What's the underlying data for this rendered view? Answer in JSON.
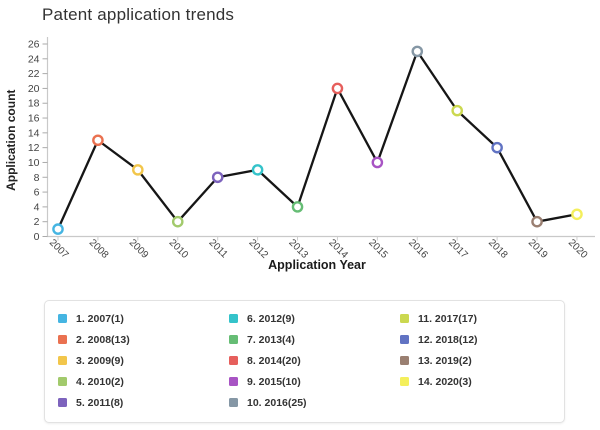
{
  "header": {
    "title": "Patent application trends"
  },
  "chart_data": {
    "type": "line",
    "title": "Patent application trends",
    "xlabel": "Application Year",
    "ylabel": "Application count",
    "categories": [
      "2007",
      "2008",
      "2009",
      "2010",
      "2011",
      "2012",
      "2013",
      "2014",
      "2015",
      "2016",
      "2017",
      "2018",
      "2019",
      "2020"
    ],
    "values": [
      1,
      13,
      9,
      2,
      8,
      9,
      4,
      20,
      10,
      25,
      17,
      12,
      2,
      3
    ],
    "ylim": [
      0,
      26
    ],
    "yticks": [
      0,
      2,
      4,
      6,
      8,
      10,
      12,
      14,
      16,
      18,
      20,
      22,
      24,
      26
    ],
    "x_tick_rotation": 45,
    "grid": false,
    "legend_position": "bottom",
    "line_color": "#161616",
    "marker_fill": "#ffffff",
    "axis_color": "#c9c9c9",
    "tick_label_color": "#444444",
    "point_colors": [
      "#45b5e2",
      "#ea7150",
      "#f2c64b",
      "#a2ca6c",
      "#7d63bd",
      "#34c3ca",
      "#66bd75",
      "#e65f5c",
      "#a854c4",
      "#8597a5",
      "#cbd850",
      "#6173c3",
      "#9a7f71",
      "#f4ef5c"
    ]
  },
  "legend": {
    "items": [
      {
        "label": "1. 2007(1)",
        "color": "#45b5e2"
      },
      {
        "label": "2. 2008(13)",
        "color": "#ea7150"
      },
      {
        "label": "3. 2009(9)",
        "color": "#f2c64b"
      },
      {
        "label": "4. 2010(2)",
        "color": "#a2ca6c"
      },
      {
        "label": "5. 2011(8)",
        "color": "#7d63bd"
      },
      {
        "label": "6. 2012(9)",
        "color": "#34c3ca"
      },
      {
        "label": "7. 2013(4)",
        "color": "#66bd75"
      },
      {
        "label": "8. 2014(20)",
        "color": "#e65f5c"
      },
      {
        "label": "9. 2015(10)",
        "color": "#a854c4"
      },
      {
        "label": "10. 2016(25)",
        "color": "#8597a5"
      },
      {
        "label": "11. 2017(17)",
        "color": "#cbd850"
      },
      {
        "label": "12. 2018(12)",
        "color": "#6173c3"
      },
      {
        "label": "13. 2019(2)",
        "color": "#9a7f71"
      },
      {
        "label": "14. 2020(3)",
        "color": "#f4ef5c"
      }
    ]
  }
}
